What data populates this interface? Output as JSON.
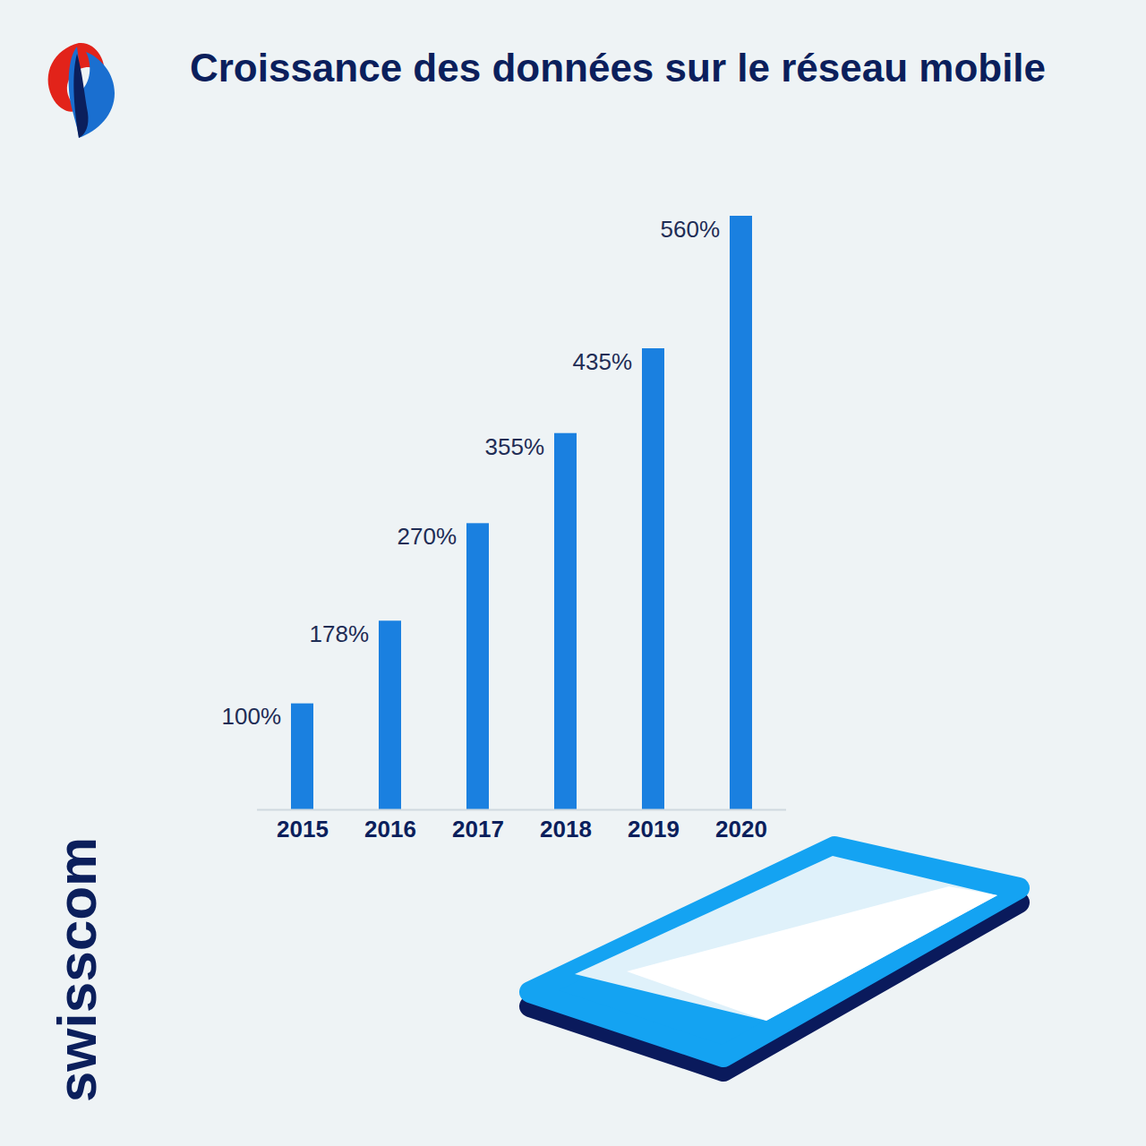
{
  "chart_data": {
    "type": "bar",
    "title": "Croissance des données sur le réseau mobile",
    "brand": "swisscom",
    "categories": [
      "2015",
      "2016",
      "2017",
      "2018",
      "2019",
      "2020"
    ],
    "values": [
      100,
      178,
      270,
      355,
      435,
      560
    ],
    "value_labels": [
      "100%",
      "178%",
      "270%",
      "355%",
      "435%",
      "560%"
    ],
    "color": "#1a80e0",
    "ylim": [
      0,
      560
    ],
    "data_labels": true,
    "tick_labels": "x",
    "grid": false
  }
}
